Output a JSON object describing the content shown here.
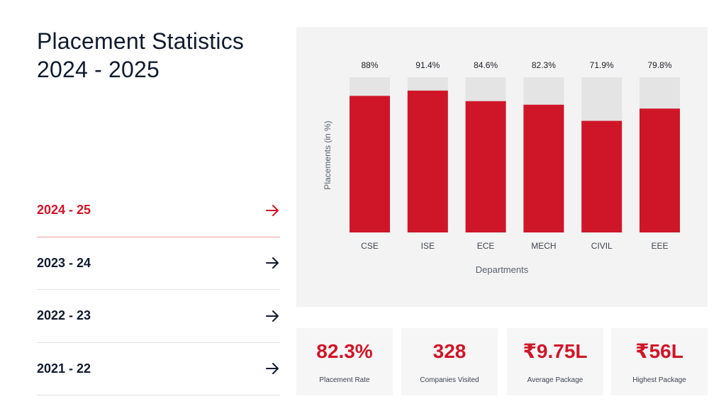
{
  "header": {
    "title_line1": "Placement Statistics",
    "title_line2": "2024 - 2025"
  },
  "years": [
    {
      "label": "2024 - 25",
      "active": true,
      "icon": "arrow-right-icon"
    },
    {
      "label": "2023 - 24",
      "active": false,
      "icon": "arrow-right-icon"
    },
    {
      "label": "2022 - 23",
      "active": false,
      "icon": "arrow-right-icon"
    },
    {
      "label": "2021 - 22",
      "active": false,
      "icon": "arrow-right-icon"
    }
  ],
  "colors": {
    "accent": "#cf1628",
    "track": "#e4e4e4",
    "panel_bg": "#f3f3f3",
    "text_dark": "#111b2e"
  },
  "chart_data": {
    "type": "bar",
    "title": "",
    "xlabel": "Departments",
    "ylabel": "Placements (in %)",
    "ylim": [
      0,
      100
    ],
    "grid": false,
    "legend": "none",
    "categories": [
      "CSE",
      "ISE",
      "ECE",
      "MECH",
      "CIVIL",
      "EEE"
    ],
    "values": [
      88,
      91.4,
      84.6,
      82.3,
      71.9,
      79.8
    ],
    "data_labels": [
      "88%",
      "91.4%",
      "84.6%",
      "82.3%",
      "71.9%",
      "79.8%"
    ]
  },
  "stats": [
    {
      "value": "82.3%",
      "label": "Placement Rate"
    },
    {
      "value": "328",
      "label": "Companies Visited"
    },
    {
      "value": "₹9.75L",
      "label": "Average Package"
    },
    {
      "value": "₹56L",
      "label": "Highest Package"
    }
  ]
}
